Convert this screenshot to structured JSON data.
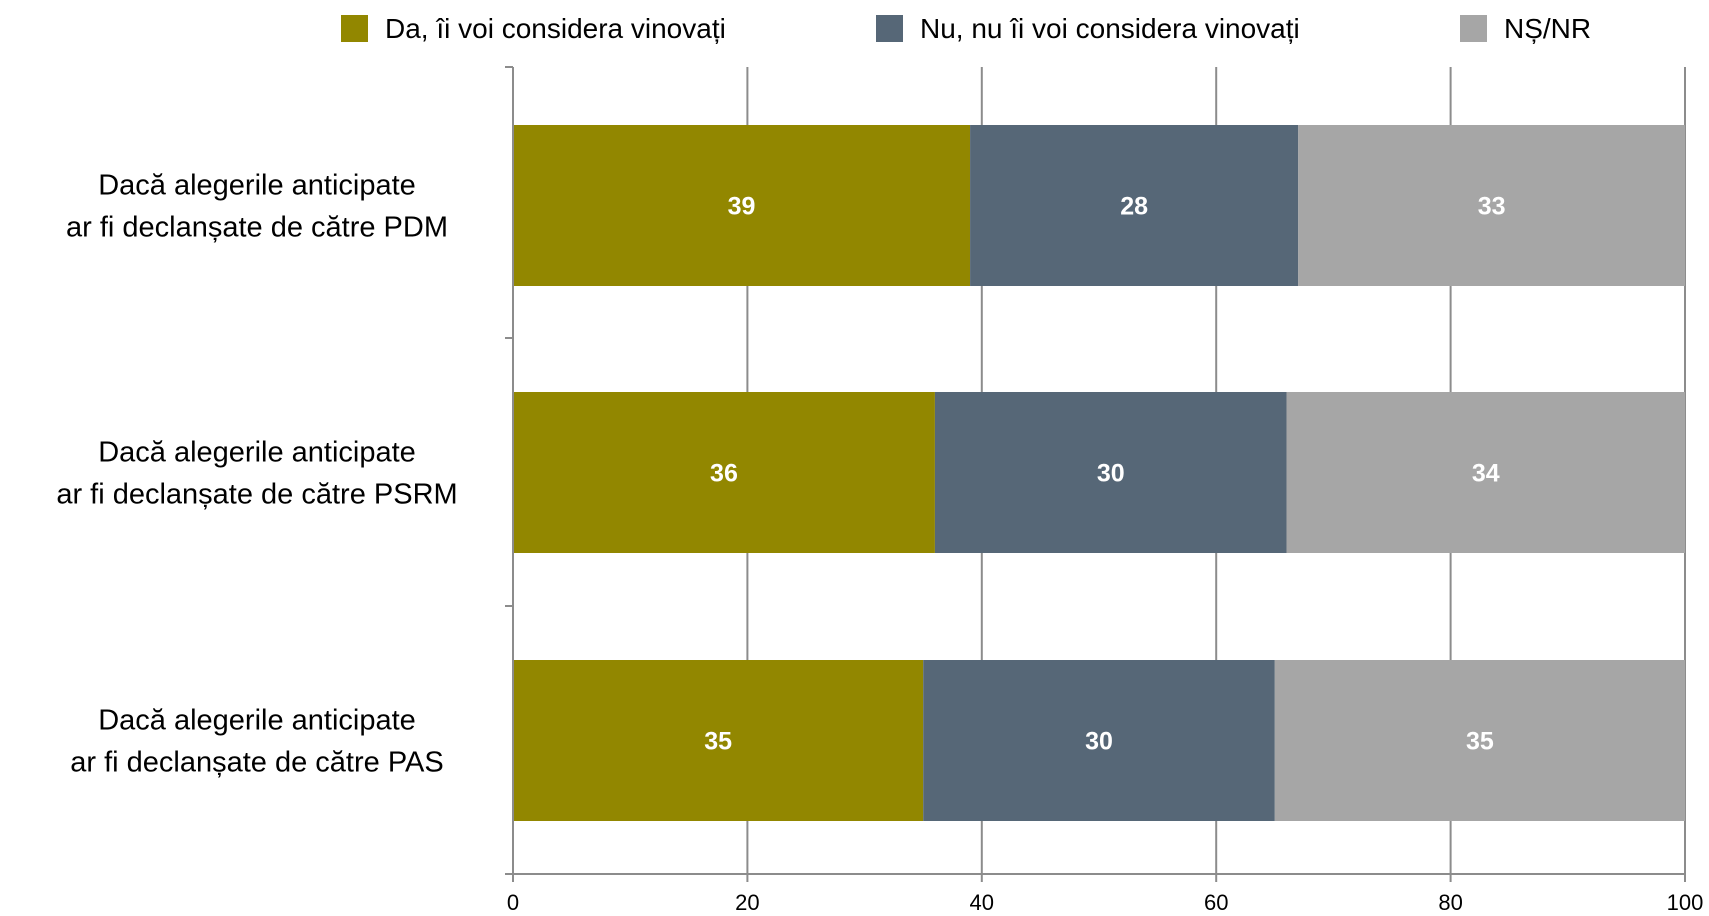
{
  "chart_data": {
    "type": "bar",
    "orientation": "horizontal",
    "stacked": true,
    "categories": [
      [
        "Dacă alegerile anticipate",
        "ar fi declanșate de către PDM"
      ],
      [
        "Dacă alegerile anticipate",
        "ar fi declanșate de către PSRM"
      ],
      [
        "Dacă alegerile anticipate",
        "ar fi declanșate de către PAS"
      ]
    ],
    "series": [
      {
        "name": "Da, îi voi considera vinovați",
        "color": "#928700",
        "values": [
          39,
          36,
          35
        ]
      },
      {
        "name": "Nu, nu îi voi considera vinovați",
        "color": "#566777",
        "values": [
          28,
          30,
          30
        ]
      },
      {
        "name": "NȘ/NR",
        "color": "#a6a6a6",
        "values": [
          33,
          34,
          35
        ]
      }
    ],
    "xlim": [
      0,
      100
    ],
    "xticks": [
      0,
      20,
      40,
      60,
      80,
      100
    ],
    "grid": true,
    "legend_position": "top",
    "title": "",
    "xlabel": "",
    "ylabel": ""
  }
}
